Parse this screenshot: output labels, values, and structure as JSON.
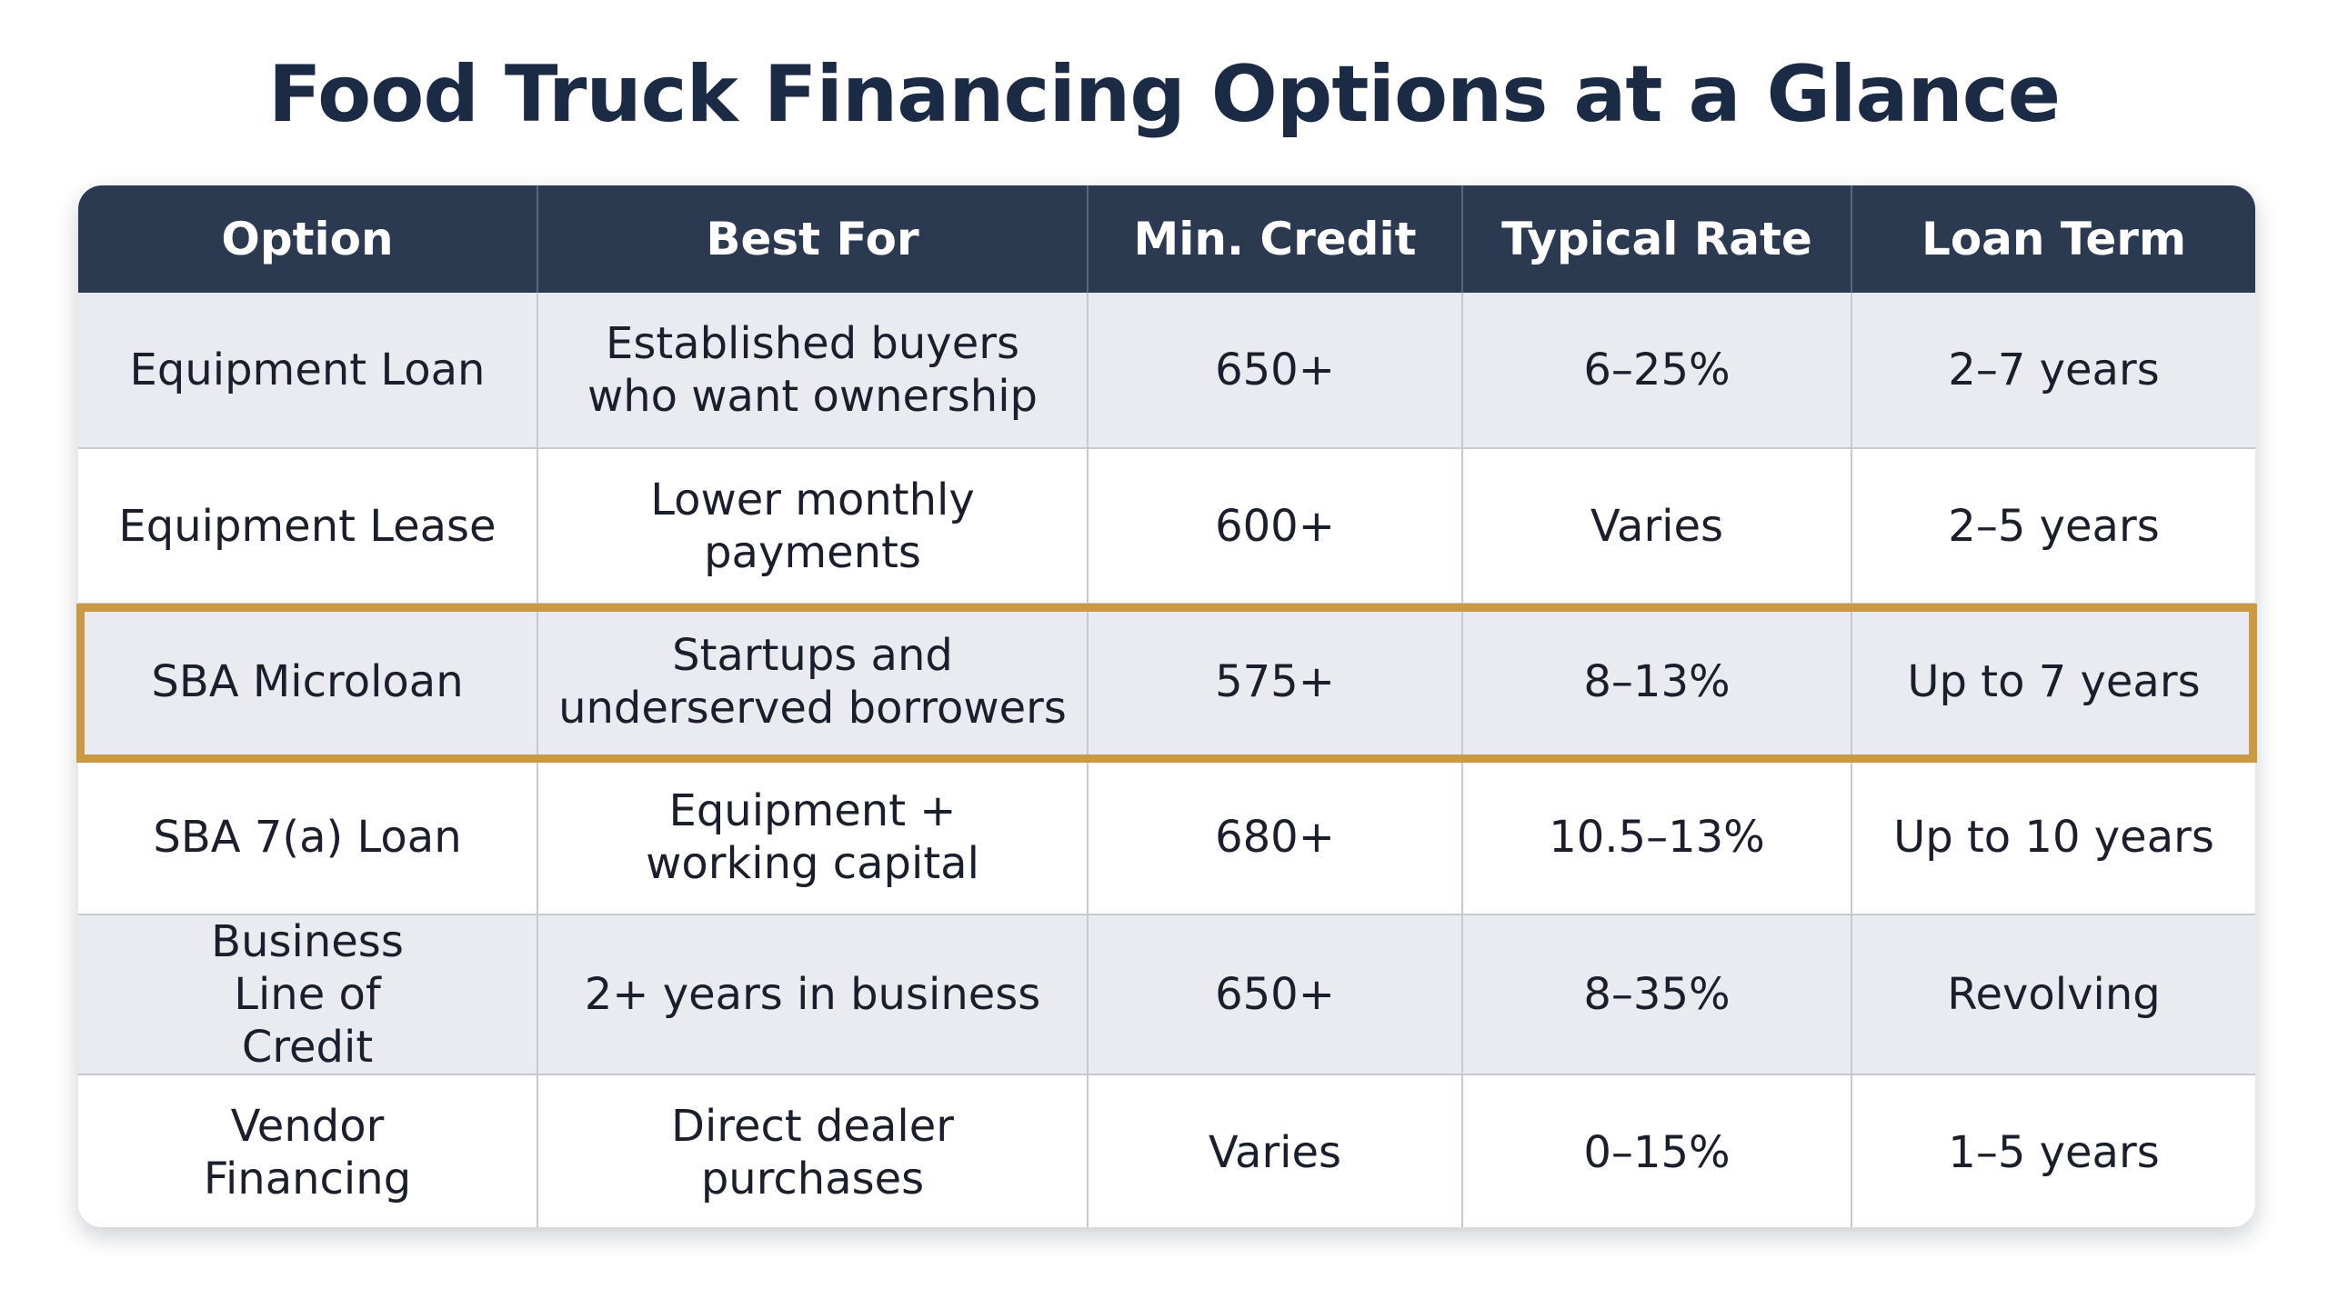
{
  "title": "Food Truck Financing Options at a Glance",
  "table": {
    "headers": [
      "Option",
      "Best For",
      "Min. Credit",
      "Typical Rate",
      "Loan Term"
    ],
    "rows": [
      {
        "option": "Equipment Loan",
        "best_for": "Established buyers who want ownership",
        "min_credit": "650+",
        "typical_rate": "6–25%",
        "loan_term": "2–7 years",
        "highlighted": false
      },
      {
        "option": "Equipment Lease",
        "best_for": "Lower monthly payments",
        "min_credit": "600+",
        "typical_rate": "Varies",
        "loan_term": "2–5 years",
        "highlighted": false
      },
      {
        "option": "SBA Microloan",
        "best_for": "Startups and underserved borrowers",
        "min_credit": "575+",
        "typical_rate": "8–13%",
        "loan_term": "Up to 7 years",
        "highlighted": true
      },
      {
        "option": "SBA 7(a) Loan",
        "best_for": "Equipment + working capital",
        "min_credit": "680+",
        "typical_rate": "10.5–13%",
        "loan_term": "Up to 10 years",
        "highlighted": false
      },
      {
        "option": "Business Line of Credit",
        "best_for": "2+ years in business",
        "min_credit": "650+",
        "typical_rate": "8–35%",
        "loan_term": "Revolving",
        "highlighted": false
      },
      {
        "option": "Vendor Financing",
        "best_for": "Direct dealer purchases",
        "min_credit": "Varies",
        "typical_rate": "0–15%",
        "loan_term": "1–5 years",
        "highlighted": false
      }
    ]
  },
  "colors": {
    "title": "#1c2b45",
    "header_bg": "#2c3a51",
    "row_alt_bg": "#e9ebf0",
    "highlight_border": "#c99a43"
  }
}
